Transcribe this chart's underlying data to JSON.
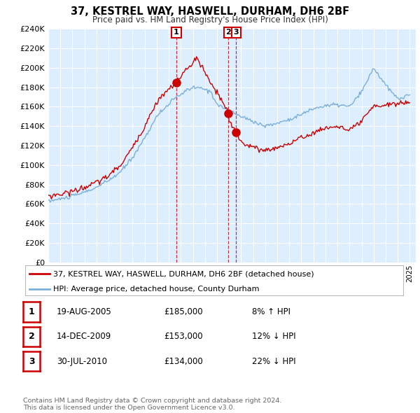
{
  "title": "37, KESTREL WAY, HASWELL, DURHAM, DH6 2BF",
  "subtitle": "Price paid vs. HM Land Registry's House Price Index (HPI)",
  "ylim": [
    0,
    240000
  ],
  "xlim_start": 1995.0,
  "xlim_end": 2025.5,
  "bg_color": "#ddeeff",
  "red_line_color": "#cc0000",
  "blue_line_color": "#7ab0d8",
  "transaction1": {
    "date_num": 2005.63,
    "price": 185000,
    "label": "1"
  },
  "transaction2": {
    "date_num": 2009.95,
    "price": 153000,
    "label": "2"
  },
  "transaction3": {
    "date_num": 2010.58,
    "price": 134000,
    "label": "3"
  },
  "legend_red_label": "37, KESTREL WAY, HASWELL, DURHAM, DH6 2BF (detached house)",
  "legend_blue_label": "HPI: Average price, detached house, County Durham",
  "table_rows": [
    {
      "num": "1",
      "date": "19-AUG-2005",
      "price": "£185,000",
      "change": "8% ↑ HPI"
    },
    {
      "num": "2",
      "date": "14-DEC-2009",
      "price": "£153,000",
      "change": "12% ↓ HPI"
    },
    {
      "num": "3",
      "date": "30-JUL-2010",
      "price": "£134,000",
      "change": "22% ↓ HPI"
    }
  ],
  "footer": "Contains HM Land Registry data © Crown copyright and database right 2024.\nThis data is licensed under the Open Government Licence v3.0."
}
